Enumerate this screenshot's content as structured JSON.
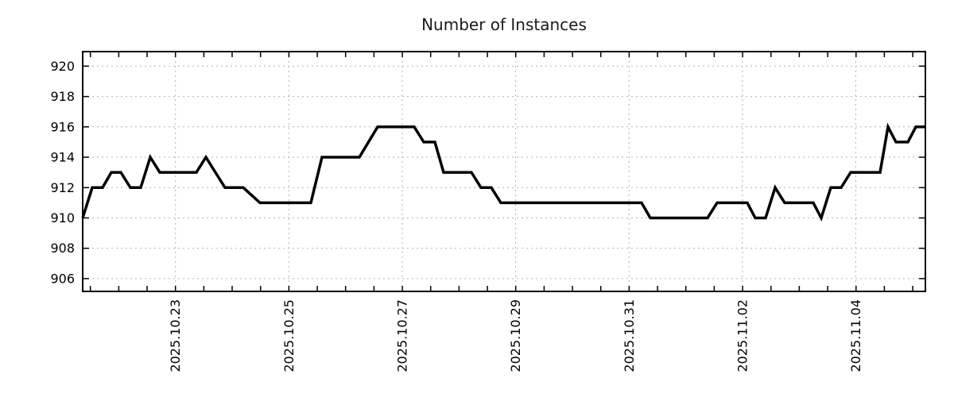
{
  "chart_data": {
    "type": "line",
    "title": "Number of Instances",
    "background": "#ffffff",
    "grid": {
      "show": true,
      "style": "dotted",
      "color": "#b3b3b3"
    },
    "legend": "none",
    "axes": {
      "y": {
        "ticks": [
          920,
          918,
          916,
          914,
          912,
          910,
          908,
          906
        ],
        "lim": [
          905.16,
          920.96
        ],
        "side": "left"
      },
      "x": {
        "ticks": [
          {
            "label": "2025.10.23",
            "pos": 0.1101
          },
          {
            "label": "2025.10.25",
            "pos": 0.2446
          },
          {
            "label": "2025.10.27",
            "pos": 0.3792
          },
          {
            "label": "2025.10.29",
            "pos": 0.5138
          },
          {
            "label": "2025.10.31",
            "pos": 0.6484
          },
          {
            "label": "2025.11.02",
            "pos": 0.7829
          },
          {
            "label": "2025.11.04",
            "pos": 0.9175
          }
        ],
        "minor_ticks": {
          "start_pos": 0.00915,
          "step_pos": 0.03365,
          "count": 30
        },
        "label_rotation": -90
      }
    },
    "series": [
      {
        "name": "instances",
        "color": "#000000",
        "width": 3.5,
        "points": [
          [
            0.0,
            910
          ],
          [
            0.0113,
            912
          ],
          [
            0.0236,
            912
          ],
          [
            0.034,
            913
          ],
          [
            0.0453,
            913
          ],
          [
            0.0566,
            912
          ],
          [
            0.0689,
            912
          ],
          [
            0.0802,
            914
          ],
          [
            0.0915,
            913
          ],
          [
            0.1349,
            913
          ],
          [
            0.1462,
            914
          ],
          [
            0.1689,
            912
          ],
          [
            0.1906,
            912
          ],
          [
            0.2104,
            911
          ],
          [
            0.2708,
            911
          ],
          [
            0.284,
            914
          ],
          [
            0.3283,
            914
          ],
          [
            0.35,
            916
          ],
          [
            0.3934,
            916
          ],
          [
            0.4047,
            915
          ],
          [
            0.4179,
            915
          ],
          [
            0.4283,
            913
          ],
          [
            0.4613,
            913
          ],
          [
            0.4726,
            912
          ],
          [
            0.4849,
            912
          ],
          [
            0.4962,
            911
          ],
          [
            0.6632,
            911
          ],
          [
            0.6736,
            910
          ],
          [
            0.7415,
            910
          ],
          [
            0.7528,
            911
          ],
          [
            0.7887,
            911
          ],
          [
            0.7981,
            910
          ],
          [
            0.8104,
            910
          ],
          [
            0.8217,
            912
          ],
          [
            0.833,
            911
          ],
          [
            0.867,
            911
          ],
          [
            0.8764,
            910
          ],
          [
            0.8877,
            912
          ],
          [
            0.9,
            912
          ],
          [
            0.9113,
            913
          ],
          [
            0.9462,
            913
          ],
          [
            0.9557,
            916
          ],
          [
            0.9651,
            915
          ],
          [
            0.9792,
            915
          ],
          [
            0.9887,
            916
          ],
          [
            1.0,
            916
          ]
        ]
      }
    ]
  }
}
